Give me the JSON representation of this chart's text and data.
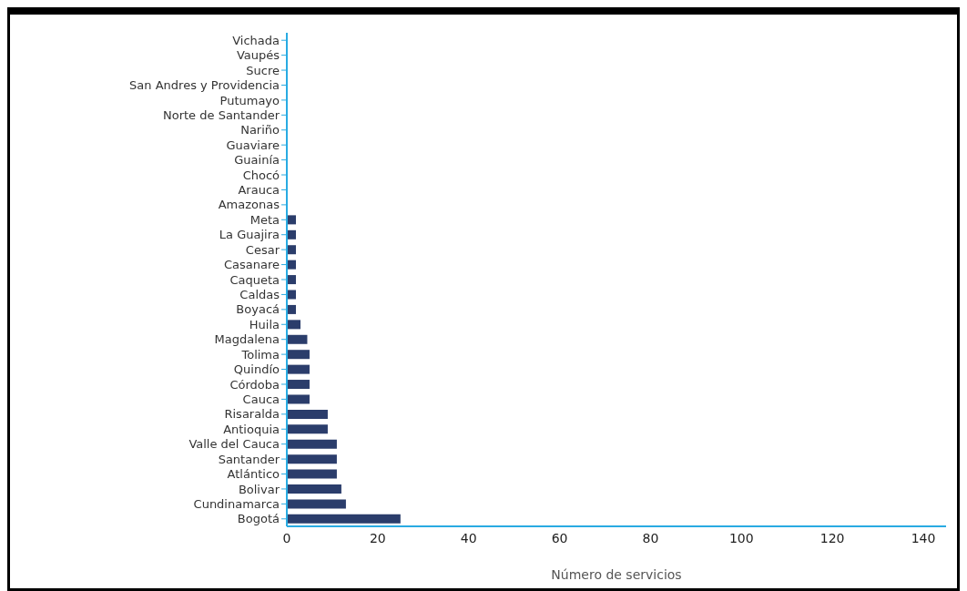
{
  "chart_data": {
    "type": "bar",
    "orientation": "horizontal",
    "xlabel": "Número de servicios",
    "categories": [
      "Vichada",
      "Vaupés",
      "Sucre",
      "San Andres y Providencia",
      "Putumayo",
      "Norte de Santander",
      "Nariño",
      "Guaviare",
      "Guainía",
      "Chocó",
      "Arauca",
      "Amazonas",
      "Meta",
      "La Guajira",
      "Cesar",
      "Casanare",
      "Caqueta",
      "Caldas",
      "Boyacá",
      "Huila",
      "Magdalena",
      "Tolima",
      "Quindío",
      "Córdoba",
      "Cauca",
      "Risaralda",
      "Antioquia",
      "Valle del Cauca",
      "Santander",
      "Atlántico",
      "Bolivar",
      "Cundinamarca",
      "Bogotá"
    ],
    "values": [
      0,
      0,
      0,
      0,
      0,
      0,
      0,
      0,
      0,
      0,
      0,
      0,
      2,
      2,
      2,
      2,
      2,
      2,
      2,
      3,
      4.5,
      5,
      5,
      5,
      5,
      9,
      9,
      11,
      11,
      11,
      12,
      13,
      25
    ],
    "color": "#2b3d6b",
    "xlim": [
      0,
      145
    ],
    "xticks": [
      0,
      20,
      40,
      60,
      80,
      100,
      120,
      140
    ]
  }
}
